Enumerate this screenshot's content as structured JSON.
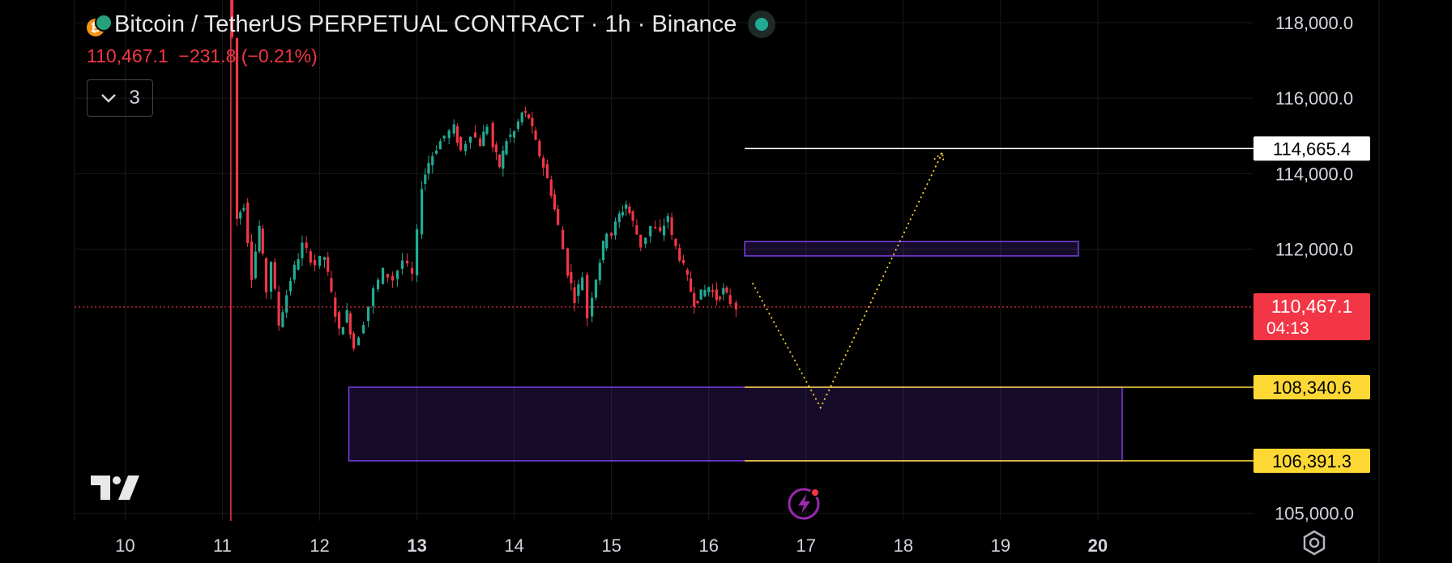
{
  "header": {
    "title": "Bitcoin / TetherUS PERPETUAL CONTRACT · 1h · Binance",
    "last_price": "110,467.1",
    "change": "−231.8",
    "change_pct": "(−0.21%)",
    "indicator_count": "3"
  },
  "icons": {
    "symbol": "bitcoin-icon",
    "tether": "tether-icon",
    "collapse": "chevron-down-icon",
    "logo": "tradingview-logo",
    "bolt": "lightning-icon",
    "settings": "gear-icon"
  },
  "colors": {
    "up": "#22ab94",
    "down": "#f23645",
    "zone": "#7b3fe4",
    "target_line": "#fdd835",
    "price_label": "#f23645"
  },
  "chart_data": {
    "type": "candlestick",
    "timeframe": "1h",
    "x_tick_labels": [
      "10",
      "11",
      "12",
      "13",
      "14",
      "15",
      "16",
      "17",
      "18",
      "19",
      "20"
    ],
    "x_tick_bold": [
      "13",
      "20"
    ],
    "y_tick_labels": [
      "118,000.0",
      "116,000.0",
      "114,000.0",
      "112,000.0",
      "105,000.0"
    ],
    "current_price": {
      "value": 110467.1,
      "label": "110,467.1",
      "countdown": "04:13"
    },
    "price_levels": [
      {
        "label": "114,665.4",
        "value": 114665.4,
        "color": "#ffffff"
      },
      {
        "label": "108,340.6",
        "value": 108340.6,
        "color": "#fdd835"
      },
      {
        "label": "106,391.3",
        "value": 106391.3,
        "color": "#fdd835"
      }
    ],
    "ohlc_path": [
      [
        11.07,
        118800
      ],
      [
        11.1,
        117600
      ],
      [
        11.15,
        112800
      ],
      [
        11.22,
        113200
      ],
      [
        11.3,
        111300
      ],
      [
        11.38,
        112600
      ],
      [
        11.45,
        110900
      ],
      [
        11.5,
        111700
      ],
      [
        11.58,
        110000
      ],
      [
        11.7,
        111200
      ],
      [
        11.82,
        112100
      ],
      [
        11.95,
        111600
      ],
      [
        12.05,
        111800
      ],
      [
        12.12,
        110800
      ],
      [
        12.2,
        109800
      ],
      [
        12.28,
        110300
      ],
      [
        12.35,
        109400
      ],
      [
        12.45,
        110100
      ],
      [
        12.55,
        110900
      ],
      [
        12.65,
        111400
      ],
      [
        12.75,
        111200
      ],
      [
        12.85,
        111700
      ],
      [
        12.95,
        111300
      ],
      [
        13.0,
        112400
      ],
      [
        13.05,
        113700
      ],
      [
        13.12,
        114300
      ],
      [
        13.2,
        114700
      ],
      [
        13.28,
        115000
      ],
      [
        13.38,
        115200
      ],
      [
        13.45,
        114600
      ],
      [
        13.55,
        115100
      ],
      [
        13.65,
        114800
      ],
      [
        13.72,
        115300
      ],
      [
        13.78,
        114700
      ],
      [
        13.85,
        114200
      ],
      [
        13.92,
        114900
      ],
      [
        14.0,
        115100
      ],
      [
        14.08,
        115600
      ],
      [
        14.15,
        115500
      ],
      [
        14.22,
        114800
      ],
      [
        14.3,
        114200
      ],
      [
        14.38,
        113500
      ],
      [
        14.45,
        112600
      ],
      [
        14.55,
        111400
      ],
      [
        14.62,
        110700
      ],
      [
        14.7,
        111300
      ],
      [
        14.75,
        110200
      ],
      [
        14.8,
        110800
      ],
      [
        14.88,
        111700
      ],
      [
        14.95,
        112500
      ],
      [
        15.0,
        112400
      ],
      [
        15.08,
        112900
      ],
      [
        15.15,
        113200
      ],
      [
        15.22,
        112700
      ],
      [
        15.3,
        112100
      ],
      [
        15.4,
        112600
      ],
      [
        15.5,
        112400
      ],
      [
        15.58,
        112900
      ],
      [
        15.62,
        112300
      ],
      [
        15.7,
        111800
      ],
      [
        15.78,
        111200
      ],
      [
        15.85,
        110600
      ],
      [
        15.92,
        110800
      ],
      [
        16.0,
        111000
      ],
      [
        16.08,
        110700
      ],
      [
        16.15,
        110900
      ],
      [
        16.22,
        110600
      ],
      [
        16.28,
        110467
      ]
    ],
    "zones": [
      {
        "x_start": 12.3,
        "x_end": 20.25,
        "y_low": 106391.3,
        "y_high": 108340.6
      },
      {
        "x_start": 16.37,
        "x_end": 19.8,
        "y_low": 111820,
        "y_high": 112200
      }
    ],
    "projection": [
      [
        16.45,
        111100
      ],
      [
        17.15,
        107800
      ],
      [
        18.4,
        114550
      ]
    ],
    "y_range": [
      104800,
      118600
    ],
    "x_range": [
      9.48,
      21.6
    ]
  }
}
